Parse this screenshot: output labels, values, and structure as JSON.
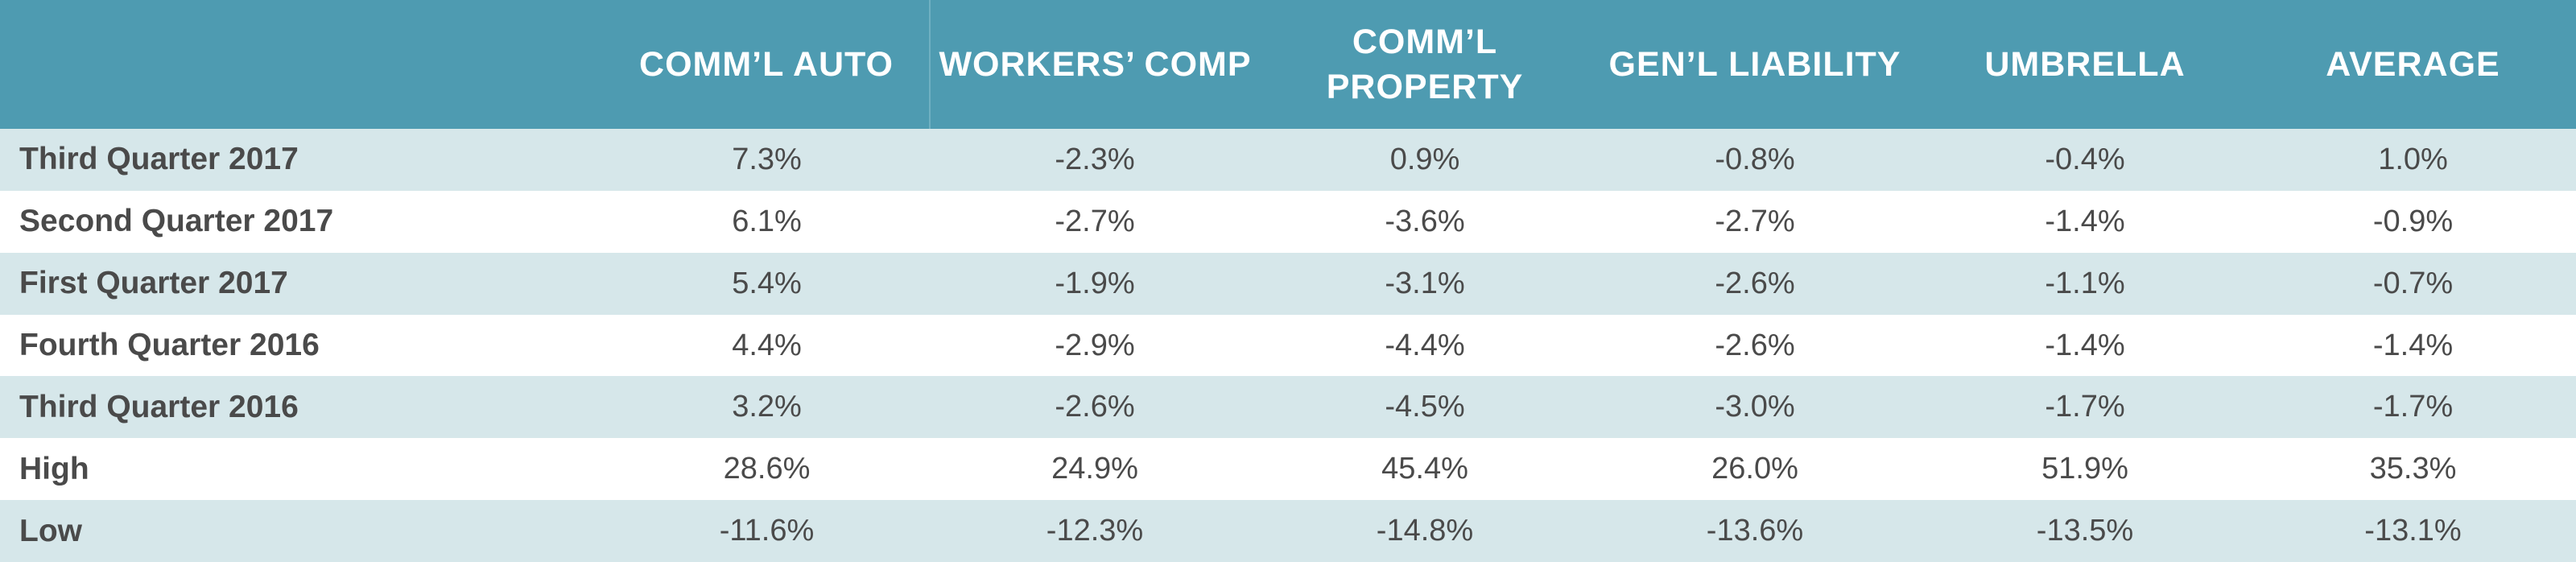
{
  "colors": {
    "header_bg": "#4e9bb1",
    "header_text": "#ffffff",
    "stripe_bg": "#d6e7ea",
    "row_bg": "#ffffff",
    "body_text": "#4a4a4a"
  },
  "chart_data": {
    "type": "table",
    "columns": [
      "COMM’L AUTO",
      "WORKERS’ COMP",
      "COMM’L PROPERTY",
      "GEN’L LIABILITY",
      "UMBRELLA",
      "AVERAGE"
    ],
    "rows": [
      {
        "label": "Third Quarter 2017",
        "values": [
          "7.3%",
          "-2.3%",
          "0.9%",
          "-0.8%",
          "-0.4%",
          "1.0%"
        ]
      },
      {
        "label": "Second Quarter 2017",
        "values": [
          "6.1%",
          "-2.7%",
          "-3.6%",
          "-2.7%",
          "-1.4%",
          "-0.9%"
        ]
      },
      {
        "label": "First Quarter 2017",
        "values": [
          "5.4%",
          "-1.9%",
          "-3.1%",
          "-2.6%",
          "-1.1%",
          "-0.7%"
        ]
      },
      {
        "label": "Fourth Quarter 2016",
        "values": [
          "4.4%",
          "-2.9%",
          "-4.4%",
          "-2.6%",
          "-1.4%",
          "-1.4%"
        ]
      },
      {
        "label": "Third Quarter 2016",
        "values": [
          "3.2%",
          "-2.6%",
          "-4.5%",
          "-3.0%",
          "-1.7%",
          "-1.7%"
        ]
      },
      {
        "label": "High",
        "values": [
          "28.6%",
          "24.9%",
          "45.4%",
          "26.0%",
          "51.9%",
          "35.3%"
        ]
      },
      {
        "label": "Low",
        "values": [
          "-11.6%",
          "-12.3%",
          "-14.8%",
          "-13.6%",
          "-13.5%",
          "-13.1%"
        ]
      }
    ]
  }
}
